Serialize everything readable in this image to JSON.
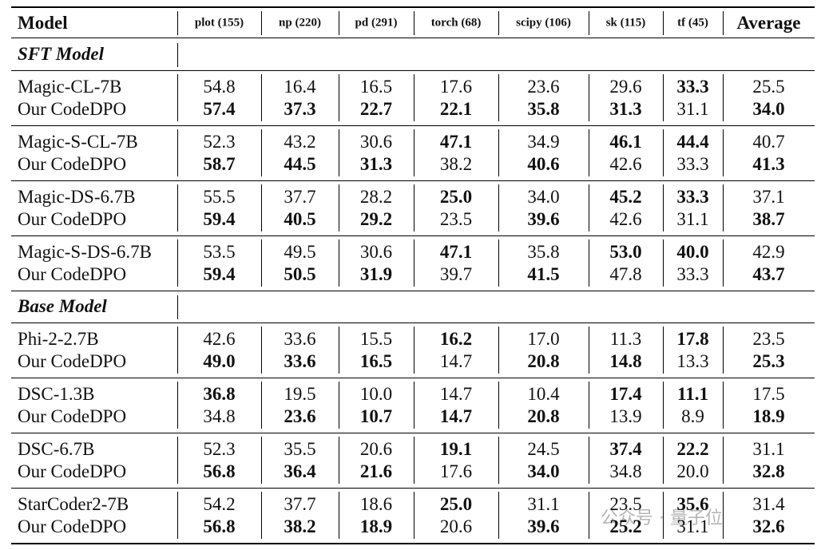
{
  "table": {
    "header": [
      "Model",
      "plot (155)",
      "np (220)",
      "pd (291)",
      "torch (68)",
      "scipy (106)",
      "sk (115)",
      "tf (45)",
      "Average"
    ],
    "sections": [
      {
        "title": "SFT Model",
        "groups": [
          [
            {
              "model": "Magic-CL-7B",
              "values": [
                "54.8",
                "16.4",
                "16.5",
                "17.6",
                "23.6",
                "29.6",
                "33.3",
                "25.5"
              ],
              "bold": [
                6
              ]
            },
            {
              "model": "Our CodeDPO",
              "values": [
                "57.4",
                "37.3",
                "22.7",
                "22.1",
                "35.8",
                "31.3",
                "31.1",
                "34.0"
              ],
              "bold": [
                0,
                1,
                2,
                3,
                4,
                5,
                7
              ]
            }
          ],
          [
            {
              "model": "Magic-S-CL-7B",
              "values": [
                "52.3",
                "43.2",
                "30.6",
                "47.1",
                "34.9",
                "46.1",
                "44.4",
                "40.7"
              ],
              "bold": [
                3,
                5,
                6
              ]
            },
            {
              "model": "Our CodeDPO",
              "values": [
                "58.7",
                "44.5",
                "31.3",
                "38.2",
                "40.6",
                "42.6",
                "33.3",
                "41.3"
              ],
              "bold": [
                0,
                1,
                2,
                4,
                7
              ]
            }
          ],
          [
            {
              "model": "Magic-DS-6.7B",
              "values": [
                "55.5",
                "37.7",
                "28.2",
                "25.0",
                "34.0",
                "45.2",
                "33.3",
                "37.1"
              ],
              "bold": [
                3,
                5,
                6
              ]
            },
            {
              "model": "Our CodeDPO",
              "values": [
                "59.4",
                "40.5",
                "29.2",
                "23.5",
                "39.6",
                "42.6",
                "31.1",
                "38.7"
              ],
              "bold": [
                0,
                1,
                2,
                4,
                7
              ]
            }
          ],
          [
            {
              "model": "Magic-S-DS-6.7B",
              "values": [
                "53.5",
                "49.5",
                "30.6",
                "47.1",
                "35.8",
                "53.0",
                "40.0",
                "42.9"
              ],
              "bold": [
                3,
                5,
                6
              ]
            },
            {
              "model": "Our CodeDPO",
              "values": [
                "59.4",
                "50.5",
                "31.9",
                "39.7",
                "41.5",
                "47.8",
                "33.3",
                "43.7"
              ],
              "bold": [
                0,
                1,
                2,
                4,
                7
              ]
            }
          ]
        ]
      },
      {
        "title": "Base Model",
        "groups": [
          [
            {
              "model": "Phi-2-2.7B",
              "values": [
                "42.6",
                "33.6",
                "15.5",
                "16.2",
                "17.0",
                "11.3",
                "17.8",
                "23.5"
              ],
              "bold": [
                3,
                6
              ]
            },
            {
              "model": "Our CodeDPO",
              "values": [
                "49.0",
                "33.6",
                "16.5",
                "14.7",
                "20.8",
                "14.8",
                "13.3",
                "25.3"
              ],
              "bold": [
                0,
                1,
                2,
                4,
                5,
                7
              ]
            }
          ],
          [
            {
              "model": "DSC-1.3B",
              "values": [
                "36.8",
                "19.5",
                "10.0",
                "14.7",
                "10.4",
                "17.4",
                "11.1",
                "17.5"
              ],
              "bold": [
                0,
                5,
                6
              ]
            },
            {
              "model": "Our CodeDPO",
              "values": [
                "34.8",
                "23.6",
                "10.7",
                "14.7",
                "20.8",
                "13.9",
                "8.9",
                "18.9"
              ],
              "bold": [
                1,
                2,
                3,
                4,
                7
              ]
            }
          ],
          [
            {
              "model": "DSC-6.7B",
              "values": [
                "52.3",
                "35.5",
                "20.6",
                "19.1",
                "24.5",
                "37.4",
                "22.2",
                "31.1"
              ],
              "bold": [
                3,
                5,
                6
              ]
            },
            {
              "model": "Our CodeDPO",
              "values": [
                "56.8",
                "36.4",
                "21.6",
                "17.6",
                "34.0",
                "34.8",
                "20.0",
                "32.8"
              ],
              "bold": [
                0,
                1,
                2,
                4,
                7
              ]
            }
          ],
          [
            {
              "model": "StarCoder2-7B",
              "values": [
                "54.2",
                "37.7",
                "18.6",
                "25.0",
                "31.1",
                "23.5",
                "35.6",
                "31.4"
              ],
              "bold": [
                3,
                6
              ]
            },
            {
              "model": "Our CodeDPO",
              "values": [
                "56.8",
                "38.2",
                "18.9",
                "20.6",
                "39.6",
                "25.2",
                "31.1",
                "32.6"
              ],
              "bold": [
                0,
                1,
                2,
                4,
                5,
                7
              ]
            }
          ]
        ]
      }
    ]
  },
  "watermark": "公众号 · 量子位"
}
